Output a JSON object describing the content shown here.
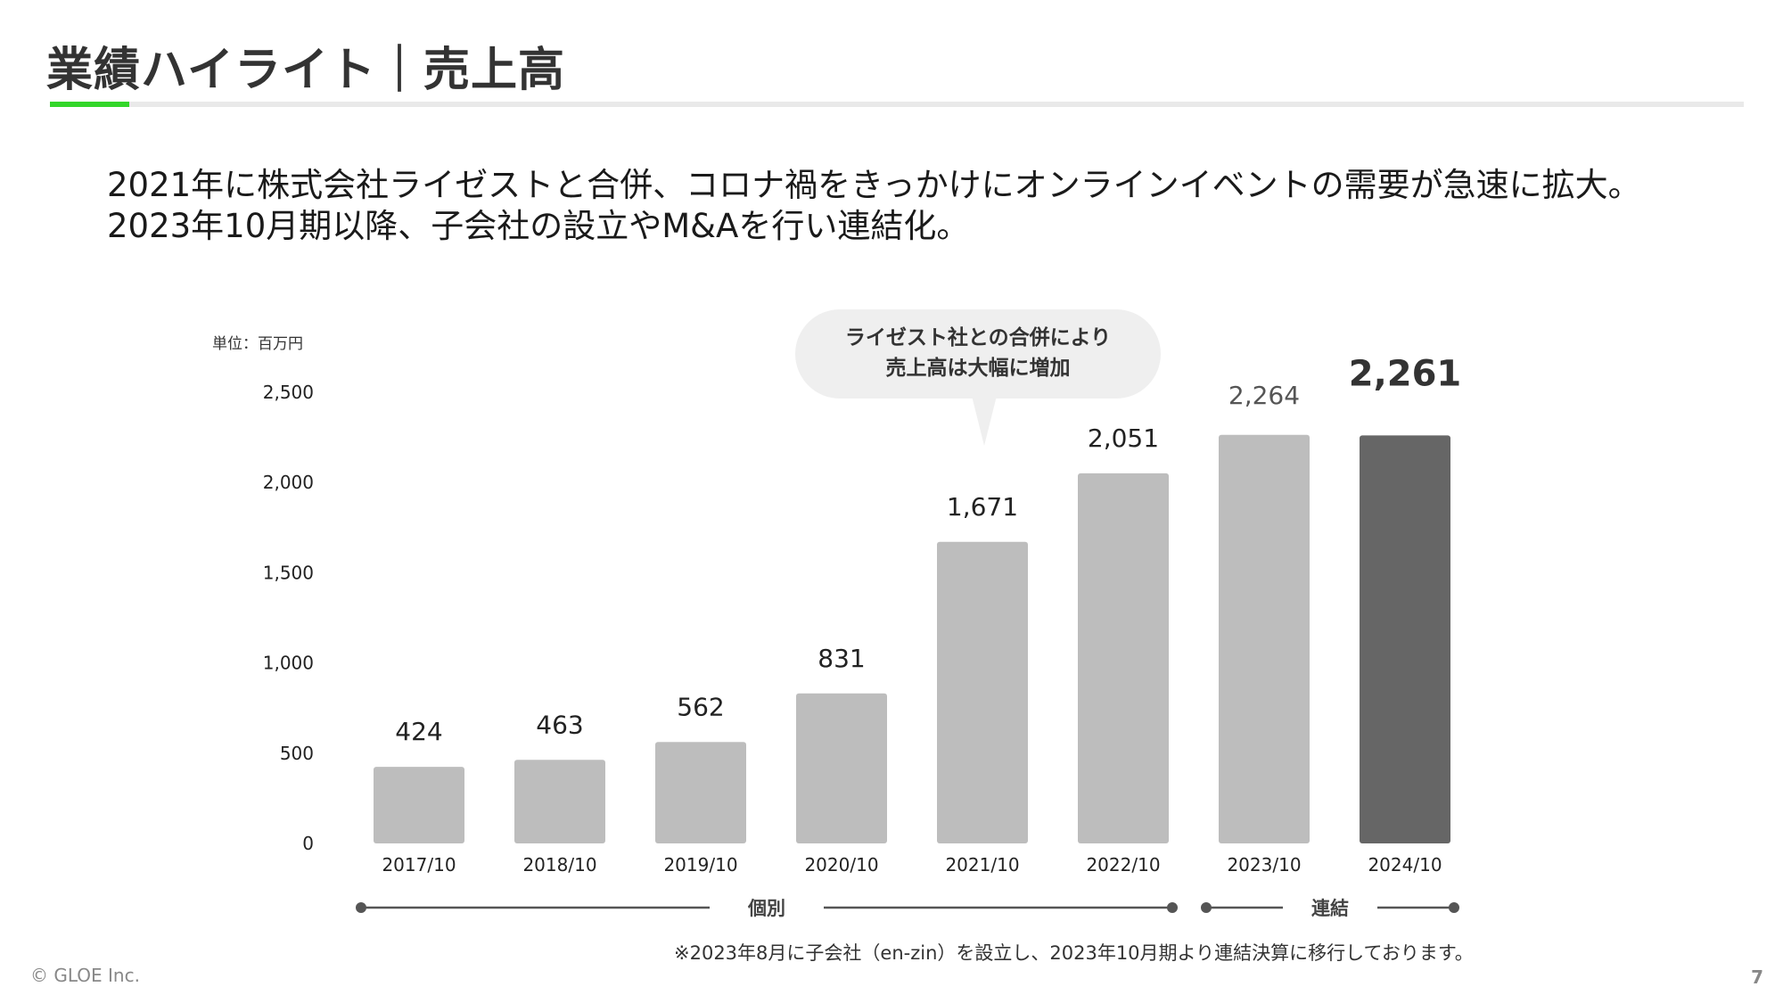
{
  "header": {
    "title": "業績ハイライト｜売上高",
    "accent_color": "#33d62a"
  },
  "lead": {
    "line1": "2021年に株式会社ライゼストと合併、コロナ禍をきっかけにオンラインイベントの需要が急速に拡大。",
    "line2": "2023年10月期以降、子会社の設立やM&Aを行い連結化。"
  },
  "chart_data": {
    "type": "bar",
    "unit_label": "単位：百万円",
    "categories": [
      "2017/10",
      "2018/10",
      "2019/10",
      "2020/10",
      "2021/10",
      "2022/10",
      "2023/10",
      "2024/10"
    ],
    "values": [
      424,
      463,
      562,
      831,
      1671,
      2051,
      2264,
      2261
    ],
    "value_labels": [
      "424",
      "463",
      "562",
      "831",
      "1,671",
      "2,051",
      "2,264",
      "2,261"
    ],
    "y_ticks": [
      0,
      500,
      1000,
      1500,
      2000,
      2500
    ],
    "y_tick_labels": [
      "0",
      "500",
      "1,000",
      "1,500",
      "2,000",
      "2,500"
    ],
    "ylim": [
      0,
      2500
    ],
    "grid": false,
    "bar_color": "#bdbdbd",
    "highlight_color": "#666666",
    "highlight_index": 7,
    "callout": {
      "line1": "ライゼスト社との合併により",
      "line2": "売上高は大幅に増加",
      "target_index": 4
    },
    "groups": [
      {
        "label": "個別",
        "from_index": 0,
        "to_index": 5
      },
      {
        "label": "連結",
        "from_index": 6,
        "to_index": 7
      }
    ]
  },
  "footnote": "※2023年8月に子会社（en-zin）を設立し、2023年10月期より連結決算に移行しております。",
  "footer": {
    "copyright": "© GLOE Inc.",
    "page_number": "7"
  }
}
